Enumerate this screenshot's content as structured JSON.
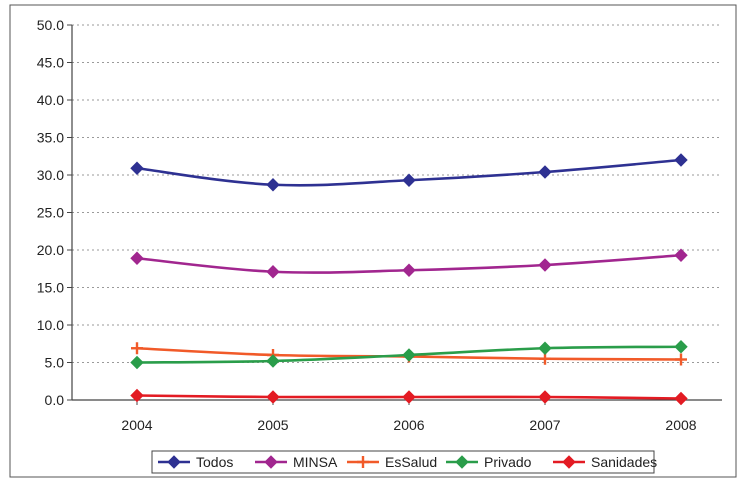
{
  "chart_data": {
    "type": "line",
    "title": "",
    "xlabel": "",
    "ylabel": "",
    "categories": [
      "2004",
      "2005",
      "2006",
      "2007",
      "2008"
    ],
    "ylim": [
      0,
      50
    ],
    "yticks": [
      "0.0",
      "5.0",
      "10.0",
      "15.0",
      "20.0",
      "25.0",
      "30.0",
      "35.0",
      "40.0",
      "45.0",
      "50.0"
    ],
    "grid": "horizontal-dotted",
    "legend_position": "bottom",
    "series": [
      {
        "name": "Todos",
        "color": "#2e3192",
        "marker": "diamond",
        "values": [
          30.9,
          28.7,
          29.3,
          30.4,
          32.0
        ]
      },
      {
        "name": "MINSA",
        "color": "#a1268f",
        "marker": "diamond",
        "values": [
          18.9,
          17.1,
          17.3,
          18.0,
          19.3
        ]
      },
      {
        "name": "EsSalud",
        "color": "#f15a29",
        "marker": "plus",
        "values": [
          6.9,
          6.0,
          5.8,
          5.5,
          5.4
        ]
      },
      {
        "name": "Privado",
        "color": "#2a9d4a",
        "marker": "diamond",
        "values": [
          5.0,
          5.2,
          6.0,
          6.9,
          7.1
        ]
      },
      {
        "name": "Sanidades",
        "color": "#e31b23",
        "marker": "diamond",
        "values": [
          0.6,
          0.4,
          0.4,
          0.4,
          0.2
        ]
      }
    ]
  }
}
